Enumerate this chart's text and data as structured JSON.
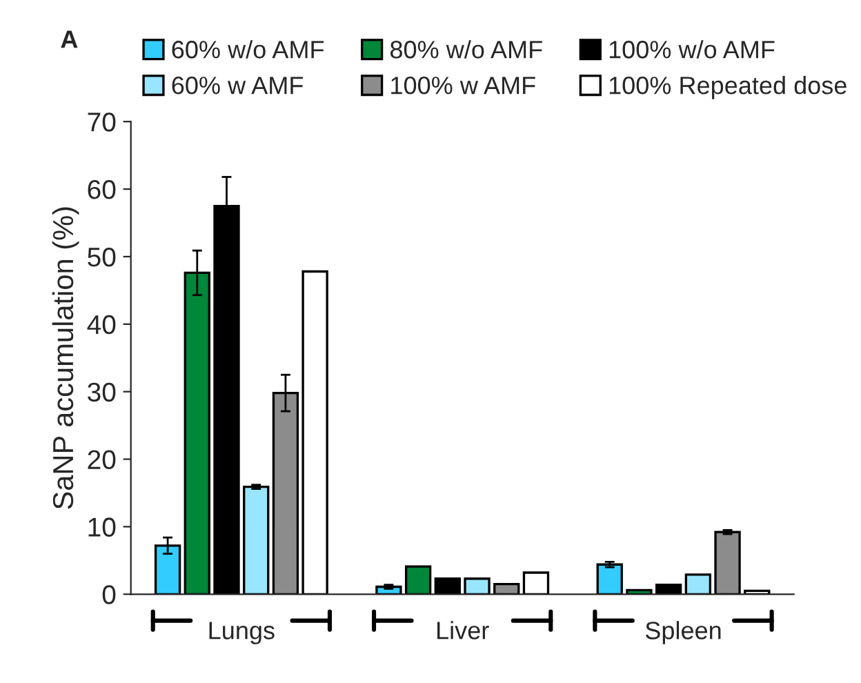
{
  "chart_data": {
    "type": "bar",
    "title": "A",
    "ylabel": "SaNP accumulation (%)",
    "categories": [
      "Lungs",
      "Liver",
      "Spleen"
    ],
    "series": [
      {
        "name": "60% w/o AMF",
        "color": "#33ccff",
        "values": [
          7.2,
          1.1,
          4.4
        ],
        "errors": [
          1.2,
          0.3,
          0.4
        ]
      },
      {
        "name": "80% w/o AMF",
        "color": "#00873a",
        "values": [
          47.6,
          4.1,
          0.6
        ],
        "errors": [
          3.3,
          null,
          null
        ]
      },
      {
        "name": "100% w/o AMF",
        "color": "#000000",
        "values": [
          57.5,
          2.3,
          1.4
        ],
        "errors": [
          4.3,
          null,
          null
        ]
      },
      {
        "name": "60% w AMF",
        "color": "#99e5ff",
        "values": [
          15.9,
          2.3,
          2.9
        ],
        "errors": [
          0.3,
          null,
          null
        ]
      },
      {
        "name": "100% w AMF",
        "color": "#8c8c8c",
        "values": [
          29.8,
          1.5,
          9.2
        ],
        "errors": [
          2.7,
          null,
          0.3
        ]
      },
      {
        "name": "100% Repeated dose",
        "color": "#ffffff",
        "values": [
          47.8,
          3.2,
          0.5
        ],
        "errors": [
          null,
          null,
          null
        ]
      }
    ],
    "ylim": [
      0,
      70
    ],
    "yticks": [
      0,
      10,
      20,
      30,
      40,
      50,
      60,
      70
    ],
    "grid": false,
    "legend": "top"
  }
}
